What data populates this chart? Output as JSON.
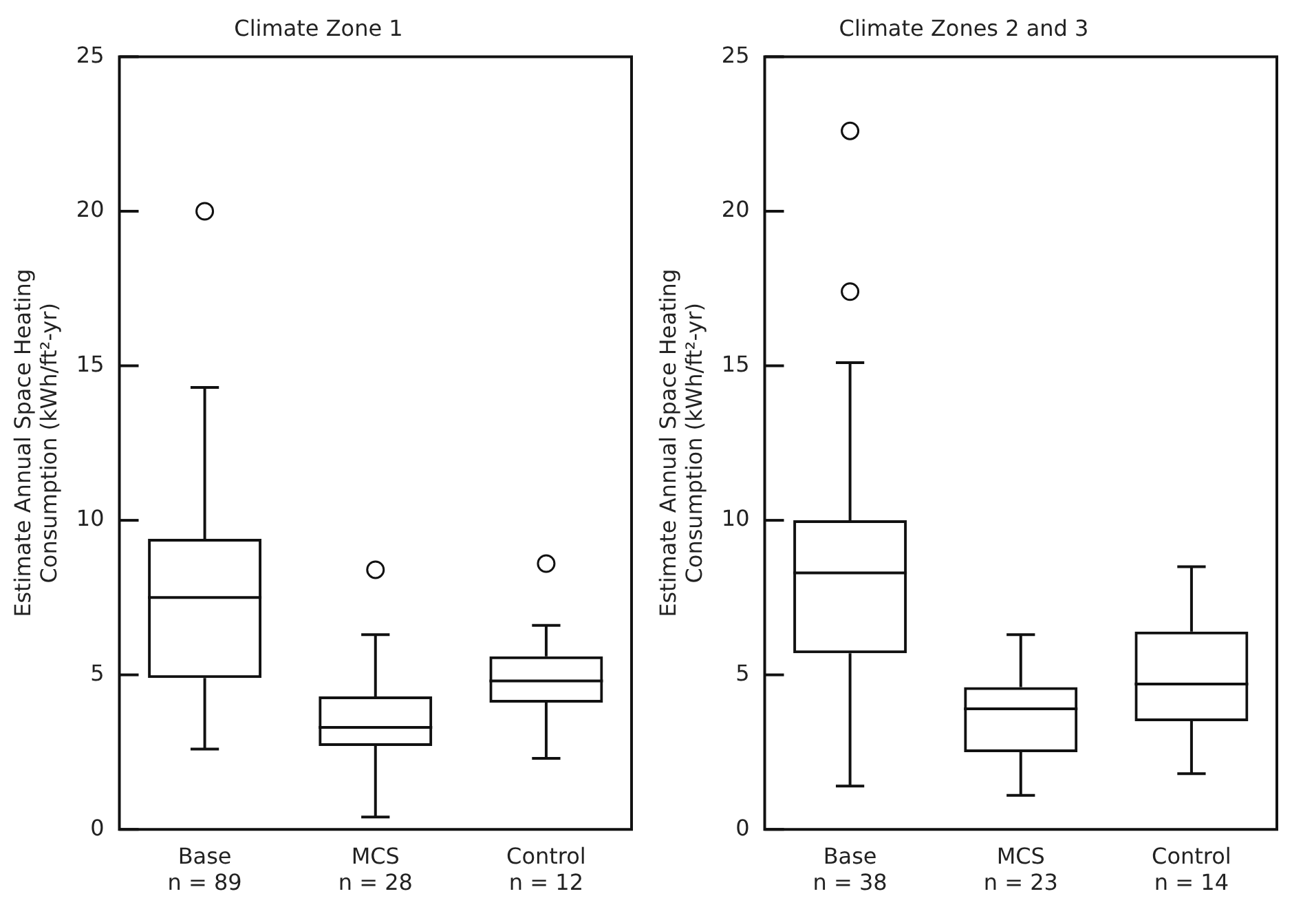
{
  "chart_data": [
    {
      "type": "box",
      "title": "Climate Zone 1",
      "ylabel": "Estimate Annual Space Heating\nConsumption (kWh/ft²-yr)",
      "categories": [
        "Base\nn = 89",
        "MCS\nn = 28",
        "Control\nn = 12"
      ],
      "ylim": [
        0,
        25
      ],
      "yticks": [
        0,
        5,
        10,
        15,
        20,
        25
      ],
      "boxes": [
        {
          "low": 2.6,
          "q1": 4.9,
          "median": 7.5,
          "q3": 9.4,
          "high": 14.3,
          "outliers": [
            20.0
          ]
        },
        {
          "low": 0.4,
          "q1": 2.7,
          "median": 3.3,
          "q3": 4.3,
          "high": 6.3,
          "outliers": [
            8.4
          ]
        },
        {
          "low": 2.3,
          "q1": 4.1,
          "median": 4.8,
          "q3": 5.6,
          "high": 6.6,
          "outliers": [
            8.6
          ]
        }
      ]
    },
    {
      "type": "box",
      "title": "Climate Zones 2 and 3",
      "ylabel": "Estimate Annual Space Heating\nConsumption (kWh/ft²-yr)",
      "categories": [
        "Base\nn = 38",
        "MCS\nn = 23",
        "Control\nn = 14"
      ],
      "ylim": [
        0,
        25
      ],
      "yticks": [
        0,
        5,
        10,
        15,
        20,
        25
      ],
      "boxes": [
        {
          "low": 1.4,
          "q1": 5.7,
          "median": 8.3,
          "q3": 10.0,
          "high": 15.1,
          "outliers": [
            22.6,
            17.4
          ]
        },
        {
          "low": 1.1,
          "q1": 2.5,
          "median": 3.9,
          "q3": 4.6,
          "high": 6.3
        },
        {
          "low": 1.8,
          "q1": 3.5,
          "median": 4.7,
          "q3": 6.4,
          "high": 8.5
        }
      ]
    }
  ]
}
